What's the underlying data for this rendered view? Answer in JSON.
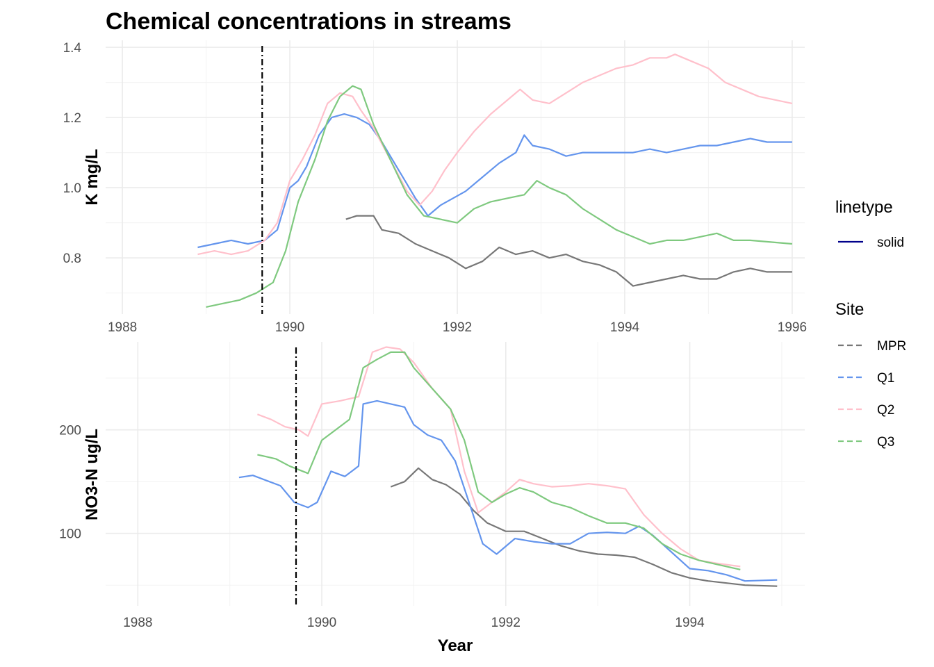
{
  "chart_data": [
    {
      "type": "line",
      "title": "Chemical concentrations in streams",
      "xlabel": "",
      "ylabel": "K mg/L",
      "xlim": [
        1987.8,
        1996.15
      ],
      "ylim": [
        0.64,
        1.42
      ],
      "xticks": [
        1988,
        1990,
        1992,
        1994,
        1996
      ],
      "yticks": [
        0.8,
        1.0,
        1.2,
        1.4
      ],
      "tick_labels_y": [
        "0.8",
        "1.0",
        "1.2",
        "1.4"
      ],
      "tick_labels_x": [
        "1988",
        "1990",
        "1992",
        "1994",
        "1996"
      ],
      "vline": 1989.67,
      "series": [
        {
          "name": "MPR",
          "color": "#777777",
          "x": [
            1990.67,
            1990.8,
            1991.0,
            1991.1,
            1991.3,
            1991.5,
            1991.7,
            1991.9,
            1992.1,
            1992.3,
            1992.5,
            1992.7,
            1992.9,
            1993.1,
            1993.3,
            1993.5,
            1993.7,
            1993.9,
            1994.1,
            1994.3,
            1994.5,
            1994.7,
            1994.9,
            1995.1,
            1995.3,
            1995.5,
            1995.7,
            1996.0
          ],
          "y": [
            0.91,
            0.92,
            0.92,
            0.88,
            0.87,
            0.84,
            0.82,
            0.8,
            0.77,
            0.79,
            0.83,
            0.81,
            0.82,
            0.8,
            0.81,
            0.79,
            0.78,
            0.76,
            0.72,
            0.73,
            0.74,
            0.75,
            0.74,
            0.74,
            0.76,
            0.77,
            0.76,
            0.76
          ]
        },
        {
          "name": "Q1",
          "color": "#6495ED",
          "x": [
            1988.9,
            1989.1,
            1989.3,
            1989.5,
            1989.7,
            1989.85,
            1990.0,
            1990.1,
            1990.2,
            1990.35,
            1990.5,
            1990.65,
            1990.8,
            1990.95,
            1991.1,
            1991.3,
            1991.5,
            1991.65,
            1991.8,
            1991.95,
            1992.1,
            1992.3,
            1992.5,
            1992.7,
            1992.8,
            1992.9,
            1993.1,
            1993.3,
            1993.5,
            1993.7,
            1993.9,
            1994.1,
            1994.3,
            1994.5,
            1994.7,
            1994.9,
            1995.1,
            1995.3,
            1995.5,
            1995.7,
            1996.0
          ],
          "y": [
            0.83,
            0.84,
            0.85,
            0.84,
            0.85,
            0.88,
            1.0,
            1.02,
            1.06,
            1.15,
            1.2,
            1.21,
            1.2,
            1.18,
            1.13,
            1.05,
            0.97,
            0.92,
            0.95,
            0.97,
            0.99,
            1.03,
            1.07,
            1.1,
            1.15,
            1.12,
            1.11,
            1.09,
            1.1,
            1.1,
            1.1,
            1.1,
            1.11,
            1.1,
            1.11,
            1.12,
            1.12,
            1.13,
            1.14,
            1.13,
            1.13
          ]
        },
        {
          "name": "Q2",
          "color": "#FFC0CB",
          "x": [
            1988.9,
            1989.1,
            1989.3,
            1989.5,
            1989.7,
            1989.85,
            1990.0,
            1990.15,
            1990.3,
            1990.45,
            1990.6,
            1990.75,
            1990.85,
            1991.0,
            1991.2,
            1991.4,
            1991.55,
            1991.7,
            1991.85,
            1992.0,
            1992.2,
            1992.4,
            1992.6,
            1992.75,
            1992.9,
            1993.1,
            1993.3,
            1993.5,
            1993.7,
            1993.9,
            1994.1,
            1994.3,
            1994.5,
            1994.6,
            1994.8,
            1995.0,
            1995.2,
            1995.4,
            1995.6,
            1996.0
          ],
          "y": [
            0.81,
            0.82,
            0.81,
            0.82,
            0.85,
            0.9,
            1.02,
            1.08,
            1.15,
            1.24,
            1.27,
            1.26,
            1.22,
            1.17,
            1.08,
            0.99,
            0.95,
            0.99,
            1.05,
            1.1,
            1.16,
            1.21,
            1.25,
            1.28,
            1.25,
            1.24,
            1.27,
            1.3,
            1.32,
            1.34,
            1.35,
            1.37,
            1.37,
            1.38,
            1.36,
            1.34,
            1.3,
            1.28,
            1.26,
            1.24
          ]
        },
        {
          "name": "Q3",
          "color": "#7FC97F",
          "x": [
            1989.0,
            1989.2,
            1989.4,
            1989.6,
            1989.8,
            1989.95,
            1990.1,
            1990.3,
            1990.45,
            1990.6,
            1990.75,
            1990.85,
            1991.0,
            1991.2,
            1991.4,
            1991.6,
            1991.8,
            1992.0,
            1992.2,
            1992.4,
            1992.6,
            1992.8,
            1992.95,
            1993.1,
            1993.3,
            1993.5,
            1993.7,
            1993.9,
            1994.1,
            1994.3,
            1994.5,
            1994.7,
            1994.9,
            1995.1,
            1995.3,
            1995.5,
            1996.0
          ],
          "y": [
            0.66,
            0.67,
            0.68,
            0.7,
            0.73,
            0.82,
            0.96,
            1.08,
            1.19,
            1.26,
            1.29,
            1.28,
            1.18,
            1.08,
            0.98,
            0.92,
            0.91,
            0.9,
            0.94,
            0.96,
            0.97,
            0.98,
            1.02,
            1.0,
            0.98,
            0.94,
            0.91,
            0.88,
            0.86,
            0.84,
            0.85,
            0.85,
            0.86,
            0.87,
            0.85,
            0.85,
            0.84
          ]
        }
      ]
    },
    {
      "type": "line",
      "xlabel": "Year",
      "ylabel": "NO3-N ug/L",
      "xlim": [
        1987.65,
        1995.25
      ],
      "ylim": [
        30,
        285
      ],
      "xticks": [
        1988,
        1990,
        1992,
        1994
      ],
      "yticks": [
        100,
        200
      ],
      "tick_labels_y": [
        "100",
        "200"
      ],
      "tick_labels_x": [
        "1988",
        "1990",
        "1992",
        "1994"
      ],
      "vline": 1989.72,
      "series": [
        {
          "name": "MPR",
          "color": "#777777",
          "x": [
            1990.75,
            1990.9,
            1991.05,
            1991.2,
            1991.35,
            1991.5,
            1991.65,
            1991.8,
            1992.0,
            1992.2,
            1992.4,
            1992.6,
            1992.8,
            1993.0,
            1993.2,
            1993.4,
            1993.6,
            1993.8,
            1994.0,
            1994.2,
            1994.4,
            1994.6,
            1994.95
          ],
          "y": [
            145,
            150,
            163,
            152,
            147,
            138,
            122,
            110,
            102,
            102,
            95,
            88,
            83,
            80,
            79,
            77,
            70,
            62,
            57,
            54,
            52,
            50,
            49
          ]
        },
        {
          "name": "Q1",
          "color": "#6495ED",
          "x": [
            1989.1,
            1989.25,
            1989.4,
            1989.55,
            1989.7,
            1989.85,
            1989.95,
            1990.1,
            1990.25,
            1990.4,
            1990.45,
            1990.6,
            1990.75,
            1990.9,
            1991.0,
            1991.15,
            1991.3,
            1991.45,
            1991.6,
            1991.75,
            1991.9,
            1992.1,
            1992.3,
            1992.5,
            1992.7,
            1992.9,
            1993.1,
            1993.3,
            1993.45,
            1993.6,
            1993.8,
            1994.0,
            1994.2,
            1994.4,
            1994.6,
            1994.95
          ],
          "y": [
            154,
            156,
            151,
            146,
            130,
            125,
            130,
            160,
            155,
            165,
            225,
            228,
            225,
            222,
            205,
            195,
            190,
            170,
            130,
            90,
            80,
            95,
            92,
            90,
            90,
            100,
            101,
            100,
            107,
            98,
            82,
            66,
            64,
            60,
            54,
            55
          ]
        },
        {
          "name": "Q2",
          "color": "#FFC0CB",
          "x": [
            1989.3,
            1989.45,
            1989.6,
            1989.75,
            1989.85,
            1990.0,
            1990.2,
            1990.4,
            1990.55,
            1990.7,
            1990.85,
            1991.0,
            1991.2,
            1991.4,
            1991.55,
            1991.7,
            1991.85,
            1992.0,
            1992.15,
            1992.3,
            1992.5,
            1992.7,
            1992.9,
            1993.1,
            1993.3,
            1993.5,
            1993.7,
            1993.9,
            1994.1,
            1994.3,
            1994.55
          ],
          "y": [
            215,
            210,
            203,
            200,
            194,
            225,
            228,
            232,
            275,
            280,
            278,
            265,
            240,
            220,
            160,
            120,
            130,
            140,
            152,
            148,
            145,
            146,
            148,
            146,
            143,
            118,
            100,
            85,
            74,
            71,
            68
          ]
        },
        {
          "name": "Q3",
          "color": "#7FC97F",
          "x": [
            1989.3,
            1989.5,
            1989.65,
            1989.85,
            1990.0,
            1990.15,
            1990.3,
            1990.45,
            1990.6,
            1990.75,
            1990.9,
            1991.0,
            1991.2,
            1991.4,
            1991.55,
            1991.7,
            1991.85,
            1992.0,
            1992.15,
            1992.3,
            1992.5,
            1992.7,
            1992.9,
            1993.1,
            1993.3,
            1993.5,
            1993.7,
            1993.9,
            1994.1,
            1994.3,
            1994.55
          ],
          "y": [
            176,
            172,
            165,
            158,
            190,
            200,
            210,
            260,
            268,
            275,
            275,
            260,
            240,
            220,
            190,
            140,
            130,
            138,
            144,
            140,
            130,
            125,
            117,
            110,
            110,
            105,
            90,
            80,
            74,
            70,
            65
          ]
        }
      ]
    }
  ],
  "legend": {
    "linetype_title": "linetype",
    "linetype_items": [
      {
        "label": "solid",
        "color": "#00008B"
      }
    ],
    "site_title": "Site",
    "site_items": [
      {
        "label": "MPR",
        "color": "#777777"
      },
      {
        "label": "Q1",
        "color": "#6495ED"
      },
      {
        "label": "Q2",
        "color": "#FFC0CB"
      },
      {
        "label": "Q3",
        "color": "#7FC97F"
      }
    ]
  }
}
